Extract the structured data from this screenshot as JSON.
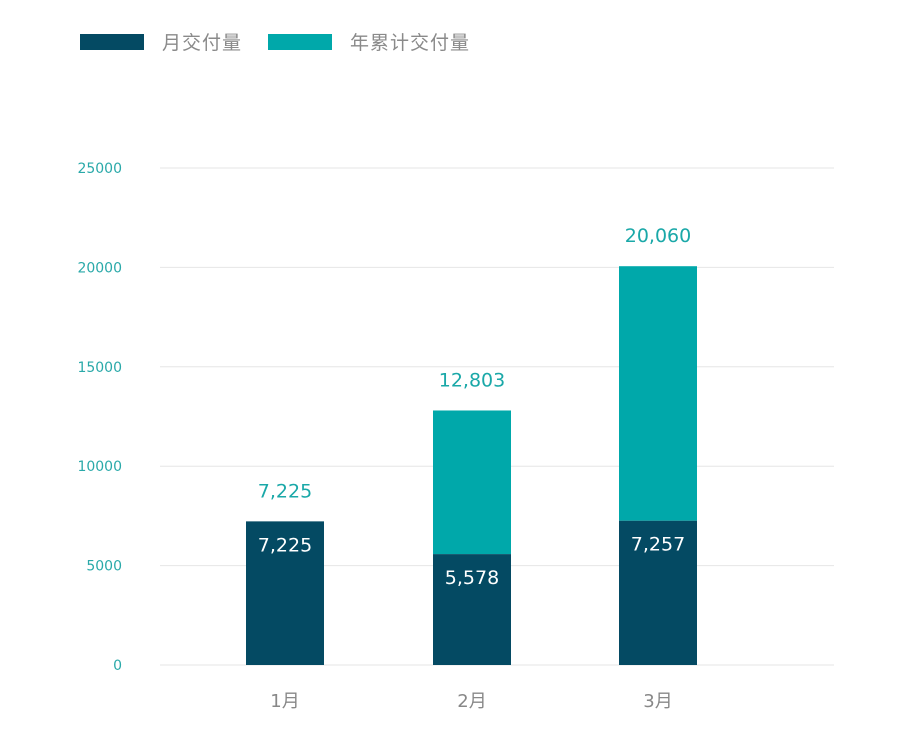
{
  "legend": {
    "monthly_label": "月交付量",
    "cumulative_label": "年累计交付量"
  },
  "colors": {
    "monthly": "#044a63",
    "cumulative": "#00a8aa"
  },
  "chart_data": {
    "type": "bar",
    "stacked": true,
    "categories": [
      "1月",
      "2月",
      "3月"
    ],
    "series": [
      {
        "name": "月交付量",
        "values": [
          7225,
          5578,
          7257
        ]
      },
      {
        "name": "年累计交付量",
        "values": [
          7225,
          12803,
          20060
        ]
      }
    ],
    "bar_labels_inner": [
      "7,225",
      "5,578",
      "7,257"
    ],
    "bar_labels_top": [
      "7,225",
      "12,803",
      "20,060"
    ],
    "yticks": [
      "0",
      "5000",
      "10000",
      "15000",
      "20000",
      "25000"
    ],
    "ylim": [
      0,
      25000
    ],
    "grid": true,
    "legend_position": "top-left",
    "title": "",
    "xlabel": "",
    "ylabel": ""
  }
}
